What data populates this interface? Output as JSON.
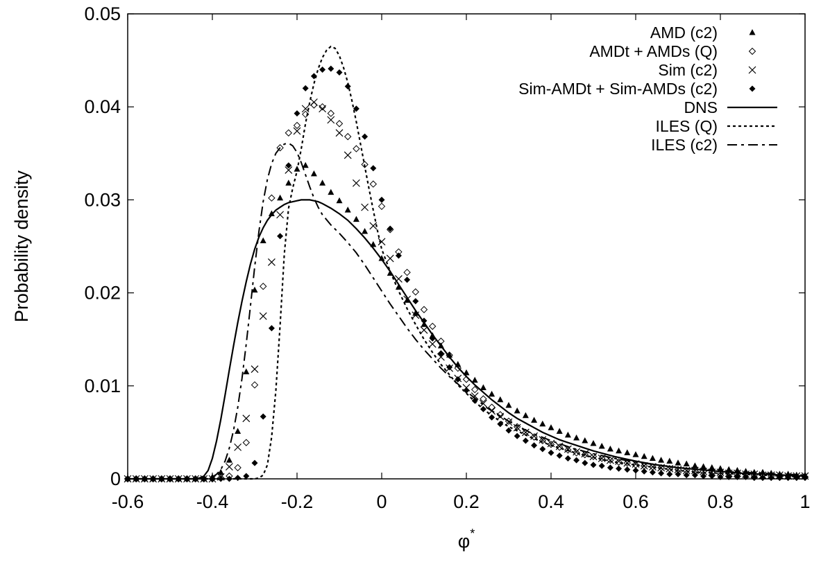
{
  "chart_data": {
    "type": "scatter",
    "xlabel": "φ",
    "xlabel_superscript": "*",
    "ylabel": "Probability density",
    "xlim": [
      -0.6,
      1.0
    ],
    "ylim": [
      0,
      0.05
    ],
    "x_ticks": [
      -0.6,
      -0.4,
      -0.2,
      0,
      0.2,
      0.4,
      0.6,
      0.8,
      1
    ],
    "x_tick_labels": [
      "-0.6",
      "-0.4",
      "-0.2",
      "0",
      "0.2",
      "0.4",
      "0.6",
      "0.8",
      "1"
    ],
    "y_ticks": [
      0,
      0.01,
      0.02,
      0.03,
      0.04,
      0.05
    ],
    "y_tick_labels": [
      "0",
      "0.01",
      "0.02",
      "0.03",
      "0.04",
      "0.05"
    ],
    "grid": false,
    "legend_position": "top-right",
    "series": [
      {
        "name": "AMD (c2)",
        "style": "marker-filled-triangle",
        "x": [
          -0.6,
          -0.58,
          -0.56,
          -0.54,
          -0.52,
          -0.5,
          -0.48,
          -0.46,
          -0.44,
          -0.42,
          -0.4,
          -0.38,
          -0.36,
          -0.34,
          -0.32,
          -0.3,
          -0.28,
          -0.26,
          -0.24,
          -0.22,
          -0.2,
          -0.18,
          -0.16,
          -0.14,
          -0.12,
          -0.1,
          -0.08,
          -0.06,
          -0.04,
          -0.02,
          0,
          0.02,
          0.04,
          0.06,
          0.08,
          0.1,
          0.12,
          0.14,
          0.16,
          0.18,
          0.2,
          0.22,
          0.24,
          0.26,
          0.28,
          0.3,
          0.32,
          0.34,
          0.36,
          0.38,
          0.4,
          0.42,
          0.44,
          0.46,
          0.48,
          0.5,
          0.52,
          0.54,
          0.56,
          0.58,
          0.6,
          0.62,
          0.64,
          0.66,
          0.68,
          0.7,
          0.72,
          0.74,
          0.76,
          0.78,
          0.8,
          0.82,
          0.84,
          0.86,
          0.88,
          0.9,
          0.92,
          0.94,
          0.96,
          0.98,
          1
        ],
        "y": [
          0,
          0,
          0,
          0,
          0,
          0,
          0,
          0,
          0,
          0,
          0.0002,
          0.0007,
          0.002,
          0.0051,
          0.0115,
          0.0203,
          0.0256,
          0.0285,
          0.0302,
          0.0318,
          0.0333,
          0.0337,
          0.0328,
          0.0318,
          0.0308,
          0.0299,
          0.0289,
          0.0279,
          0.0266,
          0.0252,
          0.0237,
          0.0221,
          0.0206,
          0.0192,
          0.0178,
          0.0166,
          0.0154,
          0.0143,
          0.0133,
          0.0123,
          0.0114,
          0.0106,
          0.0098,
          0.0091,
          0.0085,
          0.0079,
          0.0073,
          0.0068,
          0.0063,
          0.0059,
          0.0055,
          0.0051,
          0.0047,
          0.0044,
          0.0041,
          0.0038,
          0.0035,
          0.0032,
          0.003,
          0.0028,
          0.0026,
          0.0024,
          0.0022,
          0.002,
          0.0019,
          0.0017,
          0.0016,
          0.0014,
          0.0013,
          0.0012,
          0.0011,
          0.001,
          0.0009,
          0.0008,
          0.0007,
          0.0007,
          0.0006,
          0.0005,
          0.0005,
          0.0004,
          0.0004
        ]
      },
      {
        "name": "AMDt + AMDs (Q)",
        "style": "marker-open-diamond",
        "x": [
          -0.6,
          -0.58,
          -0.56,
          -0.54,
          -0.52,
          -0.5,
          -0.48,
          -0.46,
          -0.44,
          -0.42,
          -0.4,
          -0.38,
          -0.36,
          -0.34,
          -0.32,
          -0.3,
          -0.28,
          -0.26,
          -0.24,
          -0.22,
          -0.2,
          -0.18,
          -0.16,
          -0.14,
          -0.12,
          -0.1,
          -0.08,
          -0.06,
          -0.04,
          -0.02,
          0,
          0.02,
          0.04,
          0.06,
          0.08,
          0.1,
          0.12,
          0.14,
          0.16,
          0.18,
          0.2,
          0.22,
          0.24,
          0.26,
          0.28,
          0.3,
          0.32,
          0.34,
          0.36,
          0.38,
          0.4,
          0.42,
          0.44,
          0.46,
          0.48,
          0.5,
          0.52,
          0.54,
          0.56,
          0.58,
          0.6,
          0.62,
          0.64,
          0.66,
          0.68,
          0.7,
          0.72,
          0.74,
          0.76,
          0.78,
          0.8,
          0.82,
          0.84,
          0.86,
          0.88,
          0.9,
          0.92,
          0.94,
          0.96,
          0.98,
          1
        ],
        "y": [
          0,
          0,
          0,
          0,
          0,
          0,
          0,
          0,
          0,
          0,
          0,
          0.0001,
          0.0003,
          0.0012,
          0.0039,
          0.0101,
          0.0207,
          0.0302,
          0.0356,
          0.0372,
          0.038,
          0.0392,
          0.0402,
          0.04,
          0.0393,
          0.0382,
          0.0368,
          0.0355,
          0.0338,
          0.0317,
          0.0293,
          0.0268,
          0.0244,
          0.0222,
          0.0201,
          0.0182,
          0.0164,
          0.0148,
          0.0133,
          0.0119,
          0.0107,
          0.0096,
          0.0086,
          0.0077,
          0.0069,
          0.0062,
          0.0056,
          0.005,
          0.0045,
          0.0041,
          0.0037,
          0.0034,
          0.0031,
          0.0028,
          0.0026,
          0.0024,
          0.0022,
          0.002,
          0.0018,
          0.0017,
          0.0015,
          0.0014,
          0.0013,
          0.0012,
          0.0011,
          0.001,
          0.0009,
          0.0008,
          0.0008,
          0.0007,
          0.0006,
          0.0006,
          0.0005,
          0.0005,
          0.0004,
          0.0004,
          0.0003,
          0.0003,
          0.0003,
          0.0002,
          0.0002
        ]
      },
      {
        "name": "Sim (c2)",
        "style": "marker-cross",
        "x": [
          -0.6,
          -0.58,
          -0.56,
          -0.54,
          -0.52,
          -0.5,
          -0.48,
          -0.46,
          -0.44,
          -0.42,
          -0.4,
          -0.38,
          -0.36,
          -0.34,
          -0.32,
          -0.3,
          -0.28,
          -0.26,
          -0.24,
          -0.22,
          -0.2,
          -0.18,
          -0.16,
          -0.14,
          -0.12,
          -0.1,
          -0.08,
          -0.06,
          -0.04,
          -0.02,
          0,
          0.02,
          0.04,
          0.06,
          0.08,
          0.1,
          0.12,
          0.14,
          0.16,
          0.18,
          0.2,
          0.22,
          0.24,
          0.26,
          0.28,
          0.3,
          0.32,
          0.34,
          0.36,
          0.38,
          0.4,
          0.42,
          0.44,
          0.46,
          0.48,
          0.5,
          0.52,
          0.54,
          0.56,
          0.58,
          0.6,
          0.62,
          0.64,
          0.66,
          0.68,
          0.7,
          0.72,
          0.74,
          0.76,
          0.78,
          0.8,
          0.82,
          0.84,
          0.86,
          0.88,
          0.9,
          0.92,
          0.94,
          0.96,
          0.98,
          1
        ],
        "y": [
          0,
          0,
          0,
          0,
          0,
          0,
          0,
          0,
          0,
          0,
          0,
          0.0002,
          0.0013,
          0.0034,
          0.0065,
          0.0118,
          0.0175,
          0.0233,
          0.0284,
          0.0332,
          0.0374,
          0.0398,
          0.0405,
          0.0398,
          0.0386,
          0.0372,
          0.0348,
          0.0318,
          0.0292,
          0.0272,
          0.0255,
          0.0237,
          0.0215,
          0.0193,
          0.0176,
          0.016,
          0.0145,
          0.0131,
          0.0119,
          0.0108,
          0.0098,
          0.0089,
          0.0081,
          0.0073,
          0.0067,
          0.0061,
          0.0055,
          0.005,
          0.0046,
          0.0042,
          0.0038,
          0.0035,
          0.0032,
          0.0029,
          0.0027,
          0.0024,
          0.0022,
          0.002,
          0.0019,
          0.0017,
          0.0016,
          0.0014,
          0.0013,
          0.0012,
          0.0011,
          0.001,
          0.0009,
          0.0009,
          0.0008,
          0.0007,
          0.0007,
          0.0006,
          0.0006,
          0.0005,
          0.0005,
          0.0004,
          0.0004,
          0.0004,
          0.0003,
          0.0003,
          0.0003
        ]
      },
      {
        "name": "Sim-AMDt + Sim-AMDs (c2)",
        "style": "marker-filled-diamond",
        "x": [
          -0.6,
          -0.58,
          -0.56,
          -0.54,
          -0.52,
          -0.5,
          -0.48,
          -0.46,
          -0.44,
          -0.42,
          -0.4,
          -0.38,
          -0.36,
          -0.34,
          -0.32,
          -0.3,
          -0.28,
          -0.26,
          -0.24,
          -0.22,
          -0.2,
          -0.18,
          -0.16,
          -0.14,
          -0.12,
          -0.1,
          -0.08,
          -0.06,
          -0.04,
          -0.02,
          0,
          0.02,
          0.04,
          0.06,
          0.08,
          0.1,
          0.12,
          0.14,
          0.16,
          0.18,
          0.2,
          0.22,
          0.24,
          0.26,
          0.28,
          0.3,
          0.32,
          0.34,
          0.36,
          0.38,
          0.4,
          0.42,
          0.44,
          0.46,
          0.48,
          0.5,
          0.52,
          0.54,
          0.56,
          0.58,
          0.6,
          0.62,
          0.64,
          0.66,
          0.68,
          0.7,
          0.72,
          0.74,
          0.76,
          0.78,
          0.8,
          0.82,
          0.84,
          0.86,
          0.88,
          0.9,
          0.92,
          0.94,
          0.96,
          0.98,
          1
        ],
        "y": [
          0,
          0,
          0,
          0,
          0,
          0,
          0,
          0,
          0,
          0,
          0,
          0,
          0,
          0.0001,
          0.0003,
          0.0017,
          0.0067,
          0.0162,
          0.0261,
          0.0337,
          0.0393,
          0.042,
          0.0433,
          0.044,
          0.0441,
          0.0437,
          0.0422,
          0.0398,
          0.0368,
          0.0334,
          0.03,
          0.0269,
          0.024,
          0.0214,
          0.0191,
          0.017,
          0.0151,
          0.0135,
          0.012,
          0.0107,
          0.0095,
          0.0084,
          0.0075,
          0.0066,
          0.0059,
          0.0052,
          0.0046,
          0.0041,
          0.0036,
          0.0032,
          0.0028,
          0.0025,
          0.0022,
          0.002,
          0.0017,
          0.0015,
          0.0014,
          0.0012,
          0.0011,
          0.001,
          0.0009,
          0.0008,
          0.0007,
          0.0006,
          0.0005,
          0.0005,
          0.0004,
          0.0004,
          0.0003,
          0.0003,
          0.0002,
          0.0002,
          0.0002,
          0.0002,
          0.0001,
          0.0001,
          0.0001,
          0.0001,
          0.0001,
          0.0001,
          0.0001
        ]
      },
      {
        "name": "DNS",
        "style": "line-solid",
        "x": [
          -0.6,
          -0.5,
          -0.44,
          -0.43,
          -0.42,
          -0.41,
          -0.4,
          -0.39,
          -0.38,
          -0.37,
          -0.36,
          -0.35,
          -0.34,
          -0.33,
          -0.32,
          -0.31,
          -0.3,
          -0.29,
          -0.28,
          -0.27,
          -0.26,
          -0.25,
          -0.24,
          -0.23,
          -0.22,
          -0.21,
          -0.2,
          -0.19,
          -0.18,
          -0.17,
          -0.16,
          -0.15,
          -0.14,
          -0.12,
          -0.1,
          -0.08,
          -0.06,
          -0.04,
          -0.02,
          0,
          0.02,
          0.04,
          0.06,
          0.08,
          0.1,
          0.12,
          0.14,
          0.16,
          0.18,
          0.2,
          0.22,
          0.24,
          0.26,
          0.28,
          0.3,
          0.32,
          0.34,
          0.36,
          0.38,
          0.4,
          0.42,
          0.44,
          0.46,
          0.48,
          0.5,
          0.55,
          0.6,
          0.65,
          0.7,
          0.75,
          0.8,
          0.85,
          0.9,
          0.95,
          1.0
        ],
        "y": [
          0,
          0,
          0,
          0.0001,
          0.0003,
          0.0009,
          0.0022,
          0.0041,
          0.0064,
          0.009,
          0.0117,
          0.0143,
          0.0168,
          0.0191,
          0.0212,
          0.0231,
          0.0247,
          0.026,
          0.027,
          0.0278,
          0.0284,
          0.0289,
          0.0292,
          0.0295,
          0.0297,
          0.0298,
          0.0299,
          0.03,
          0.03,
          0.03,
          0.0299,
          0.0298,
          0.0296,
          0.0291,
          0.0285,
          0.0278,
          0.0269,
          0.0259,
          0.0248,
          0.0236,
          0.0223,
          0.0209,
          0.0195,
          0.0181,
          0.0168,
          0.0155,
          0.0143,
          0.0131,
          0.012,
          0.011,
          0.0101,
          0.0093,
          0.0085,
          0.0078,
          0.0071,
          0.0065,
          0.006,
          0.0055,
          0.005,
          0.0046,
          0.0042,
          0.0039,
          0.0036,
          0.0033,
          0.003,
          0.0024,
          0.0019,
          0.0015,
          0.0012,
          0.001,
          0.0008,
          0.0006,
          0.0005,
          0.0004,
          0.0003
        ]
      },
      {
        "name": "ILES (Q)",
        "style": "line-dotted",
        "x": [
          -0.6,
          -0.3,
          -0.29,
          -0.28,
          -0.27,
          -0.26,
          -0.25,
          -0.24,
          -0.23,
          -0.22,
          -0.21,
          -0.2,
          -0.19,
          -0.18,
          -0.17,
          -0.16,
          -0.15,
          -0.14,
          -0.13,
          -0.12,
          -0.11,
          -0.1,
          -0.09,
          -0.08,
          -0.07,
          -0.06,
          -0.05,
          -0.04,
          -0.03,
          -0.02,
          -0.01,
          0,
          0.02,
          0.04,
          0.06,
          0.08,
          0.1,
          0.12,
          0.14,
          0.16,
          0.18,
          0.2,
          0.22,
          0.24,
          0.26,
          0.28,
          0.3,
          0.35,
          0.4,
          0.45,
          0.5,
          0.55,
          0.6,
          0.65,
          0.7,
          0.75,
          0.8,
          0.85,
          0.9,
          0.95,
          1.0
        ],
        "y": [
          0,
          0,
          0.0001,
          0.0004,
          0.0015,
          0.0045,
          0.0095,
          0.0165,
          0.0242,
          0.0291,
          0.0313,
          0.0331,
          0.0355,
          0.0382,
          0.0405,
          0.0425,
          0.0441,
          0.0453,
          0.0461,
          0.0465,
          0.0463,
          0.0455,
          0.0442,
          0.0426,
          0.0406,
          0.0384,
          0.036,
          0.0336,
          0.0312,
          0.0289,
          0.0267,
          0.0247,
          0.0223,
          0.0202,
          0.0183,
          0.0166,
          0.015,
          0.0136,
          0.0123,
          0.0112,
          0.0101,
          0.0092,
          0.0083,
          0.0075,
          0.0068,
          0.0062,
          0.0056,
          0.0045,
          0.0036,
          0.0029,
          0.0023,
          0.0018,
          0.0015,
          0.0012,
          0.0009,
          0.0007,
          0.0006,
          0.0005,
          0.0004,
          0.0003,
          0.0002
        ]
      },
      {
        "name": "ILES (c2)",
        "style": "line-dashed",
        "x": [
          -0.6,
          -0.42,
          -0.41,
          -0.4,
          -0.39,
          -0.38,
          -0.37,
          -0.36,
          -0.35,
          -0.34,
          -0.33,
          -0.32,
          -0.31,
          -0.3,
          -0.29,
          -0.28,
          -0.27,
          -0.26,
          -0.25,
          -0.24,
          -0.23,
          -0.22,
          -0.21,
          -0.2,
          -0.19,
          -0.18,
          -0.17,
          -0.16,
          -0.15,
          -0.14,
          -0.12,
          -0.1,
          -0.08,
          -0.06,
          -0.04,
          -0.02,
          0,
          0.02,
          0.04,
          0.06,
          0.08,
          0.1,
          0.12,
          0.14,
          0.16,
          0.18,
          0.2,
          0.25,
          0.3,
          0.35,
          0.4,
          0.45,
          0.5,
          0.55,
          0.6,
          0.65,
          0.7,
          0.75,
          0.8,
          0.85,
          0.9,
          0.95,
          1.0
        ],
        "y": [
          0,
          0,
          0.0001,
          0.0002,
          0.0005,
          0.001,
          0.0019,
          0.0033,
          0.0052,
          0.0077,
          0.0108,
          0.0145,
          0.0186,
          0.0228,
          0.0266,
          0.0298,
          0.0322,
          0.0339,
          0.035,
          0.0356,
          0.036,
          0.0361,
          0.0358,
          0.0351,
          0.034,
          0.0327,
          0.0314,
          0.0302,
          0.0292,
          0.0284,
          0.0273,
          0.0264,
          0.0254,
          0.0243,
          0.023,
          0.0216,
          0.0202,
          0.0188,
          0.0175,
          0.0162,
          0.015,
          0.0139,
          0.0129,
          0.0119,
          0.011,
          0.0102,
          0.0094,
          0.0076,
          0.0062,
          0.005,
          0.0041,
          0.0033,
          0.0027,
          0.0022,
          0.0018,
          0.0015,
          0.0012,
          0.001,
          0.0008,
          0.0007,
          0.0006,
          0.0005,
          0.0004
        ]
      }
    ]
  }
}
